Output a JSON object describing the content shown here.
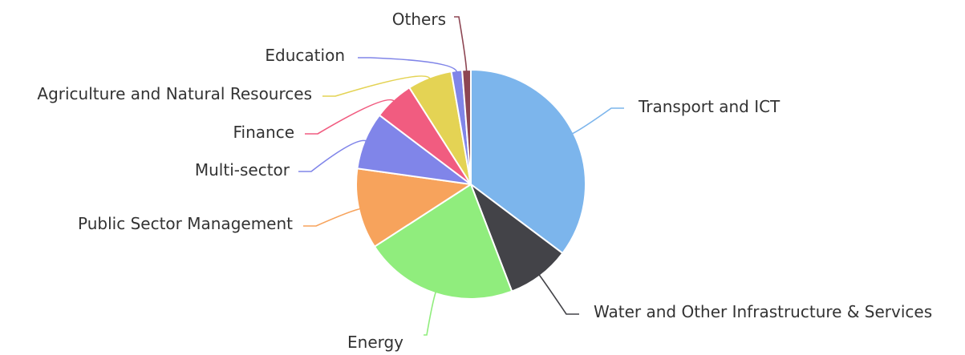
{
  "chart_data": {
    "type": "pie",
    "title": "",
    "legend": "none",
    "slices": [
      {
        "label": "Transport and ICT",
        "value": 34.8,
        "color": "#7cb5ec"
      },
      {
        "label": "Water and Other Infrastructure & Services",
        "value": 8.8,
        "color": "#434348"
      },
      {
        "label": "Energy",
        "value": 21.4,
        "color": "#90ed7d"
      },
      {
        "label": "Public Sector Management",
        "value": 11.2,
        "color": "#f7a35c"
      },
      {
        "label": "Multi-sector",
        "value": 8.0,
        "color": "#8085e9"
      },
      {
        "label": "Finance",
        "value": 5.6,
        "color": "#f15c80"
      },
      {
        "label": "Agriculture and Natural Resources",
        "value": 6.2,
        "color": "#e4d354"
      },
      {
        "label": "Education",
        "value": 1.5,
        "color": "#8085e8"
      },
      {
        "label": "Others",
        "value": 1.2,
        "color": "#8d4653"
      }
    ]
  }
}
